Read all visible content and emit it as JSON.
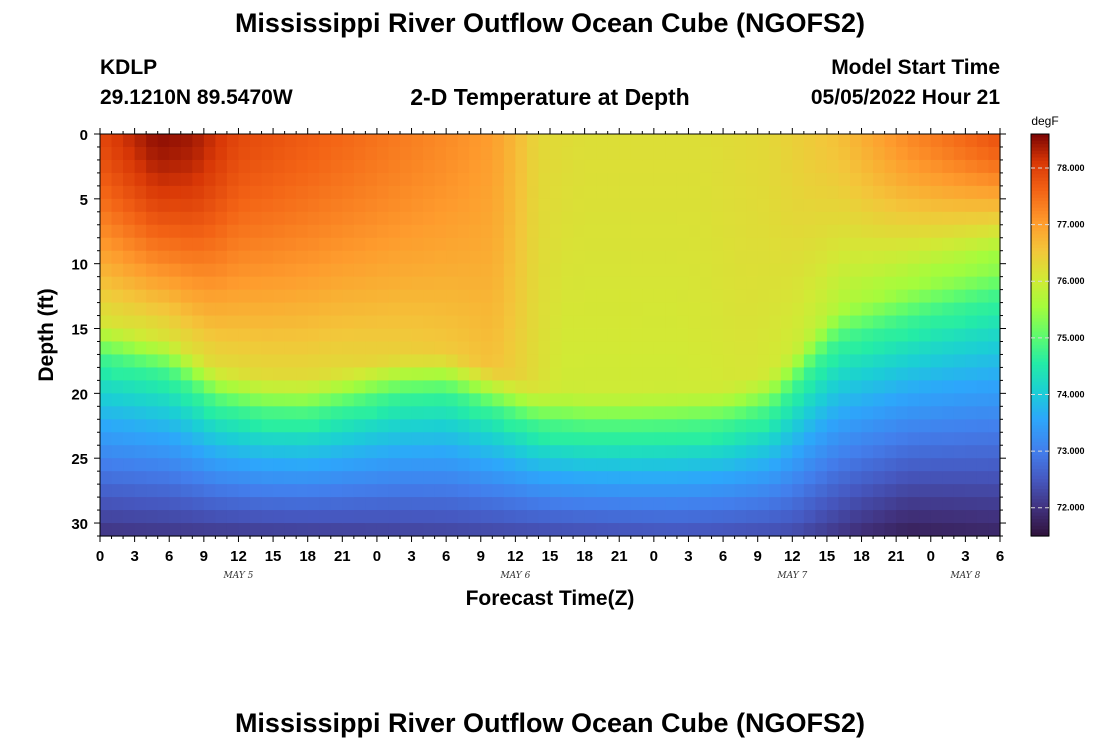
{
  "title": "Mississippi River Outflow Ocean Cube (NGOFS2)",
  "subtitle": "2-D Temperature at Depth",
  "station": {
    "id": "KDLP",
    "coords": "29.1210N  89.5470W"
  },
  "model_start": {
    "label": "Model Start Time",
    "value": "05/05/2022 Hour 21"
  },
  "footer_title": "Mississippi River Outflow Ocean Cube (NGOFS2)",
  "chart_data": {
    "type": "heatmap",
    "xlabel": "Forecast Time(Z)",
    "ylabel": "Depth (ft)",
    "x_range_hours": [
      0,
      78
    ],
    "ylim": [
      0,
      31
    ],
    "y_ticks": [
      "0",
      "5",
      "10",
      "15",
      "20",
      "25",
      "30"
    ],
    "x_tick_labels": [
      "0",
      "3",
      "6",
      "9",
      "12",
      "15",
      "18",
      "21",
      "0",
      "3",
      "6",
      "9",
      "12",
      "15",
      "18",
      "21",
      "0",
      "3",
      "6",
      "9",
      "12",
      "15",
      "18",
      "21",
      "0",
      "3",
      "6"
    ],
    "date_labels": [
      {
        "label": "MAY 5",
        "x_hour": 12
      },
      {
        "label": "MAY 6",
        "x_hour": 36
      },
      {
        "label": "MAY 7",
        "x_hour": 60
      },
      {
        "label": "MAY 8",
        "x_hour": 75
      }
    ],
    "colorbar": {
      "unit": "degF",
      "min": 71.5,
      "max": 78.6,
      "ticks": [
        "72.000",
        "73.000",
        "74.000",
        "75.000",
        "76.000",
        "77.000",
        "78.000"
      ]
    },
    "series": [
      {
        "field": "thermocline_depth_ft",
        "points": [
          [
            0,
            16
          ],
          [
            6,
            17.2
          ],
          [
            10,
            19.5
          ],
          [
            14,
            20.3
          ],
          [
            18,
            20.4
          ],
          [
            22,
            19.6
          ],
          [
            26,
            18.8
          ],
          [
            30,
            18.6
          ],
          [
            34,
            19.8
          ],
          [
            38,
            21.2
          ],
          [
            42,
            21.6
          ],
          [
            46,
            21.6
          ],
          [
            50,
            21.5
          ],
          [
            54,
            21.2
          ],
          [
            58,
            20.2
          ],
          [
            60,
            18.5
          ],
          [
            62,
            16.5
          ],
          [
            64,
            14.8
          ],
          [
            68,
            13.8
          ],
          [
            72,
            12.8
          ],
          [
            78,
            11.5
          ]
        ]
      },
      {
        "field": "surface_temperature_degF",
        "points": [
          [
            0,
            77.9
          ],
          [
            5,
            78.5
          ],
          [
            8,
            78.4
          ],
          [
            12,
            77.9
          ],
          [
            20,
            77.6
          ],
          [
            30,
            77.2
          ],
          [
            34,
            77.0
          ],
          [
            36,
            76.7
          ],
          [
            38,
            76.3
          ],
          [
            42,
            76.2
          ],
          [
            52,
            76.2
          ],
          [
            58,
            76.3
          ],
          [
            64,
            76.6
          ],
          [
            70,
            77.2
          ],
          [
            78,
            77.8
          ]
        ]
      },
      {
        "field": "upper_layer_temperature_at_thermocline_degF",
        "points": [
          [
            0,
            76.2
          ],
          [
            10,
            76.3
          ],
          [
            20,
            76.3
          ],
          [
            30,
            76.5
          ],
          [
            34,
            76.6
          ],
          [
            37,
            76.3
          ],
          [
            40,
            76.0
          ],
          [
            45,
            76.0
          ],
          [
            50,
            76.0
          ],
          [
            56,
            76.1
          ],
          [
            60,
            76.0
          ],
          [
            65,
            75.7
          ],
          [
            70,
            75.6
          ],
          [
            78,
            75.5
          ]
        ]
      },
      {
        "field": "bottom_temperature_degF",
        "points": [
          [
            0,
            72.0
          ],
          [
            30,
            72.2
          ],
          [
            50,
            72.4
          ],
          [
            60,
            72.3
          ],
          [
            66,
            71.9
          ],
          [
            70,
            71.7
          ],
          [
            78,
            71.8
          ]
        ]
      }
    ]
  }
}
